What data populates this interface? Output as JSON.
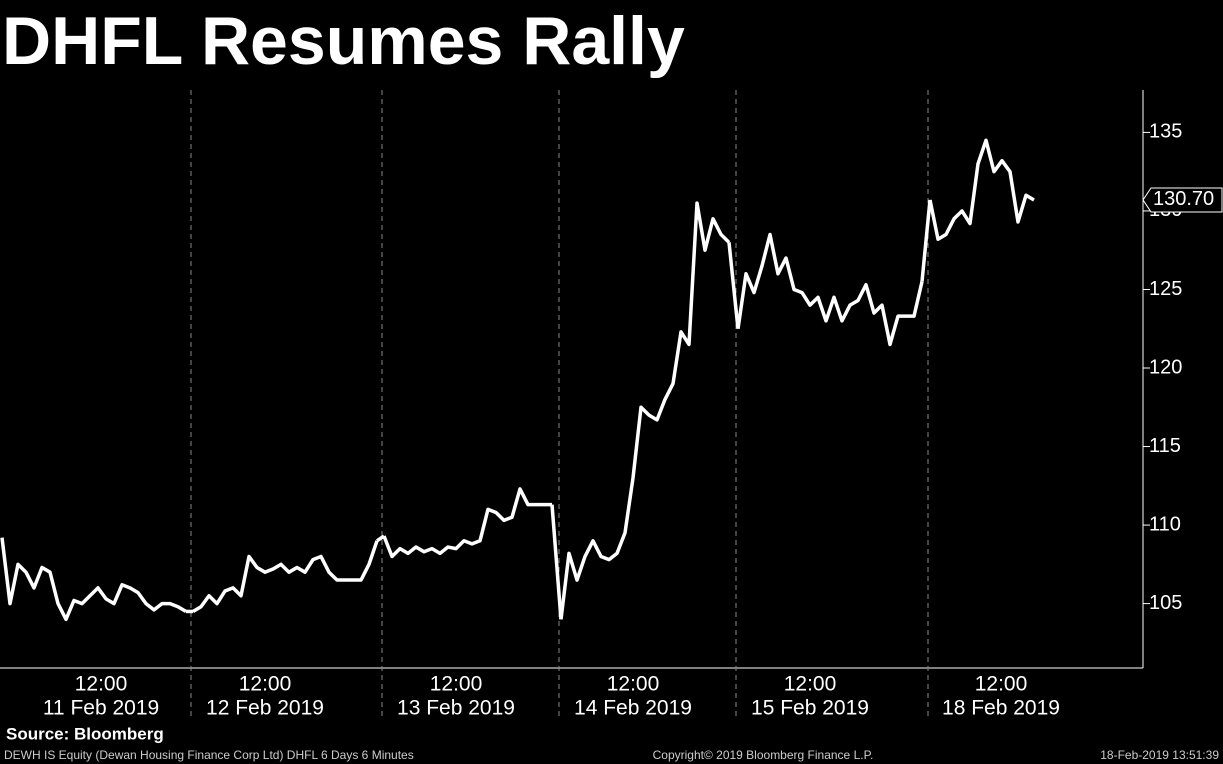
{
  "chart_data": {
    "type": "line",
    "title": "DHFL Resumes Rally",
    "source": "Source: Bloomberg",
    "footer_left": "DEWH IS Equity (Dewan Housing Finance Corp Ltd) DHFL 6 Days 6 Minutes",
    "footer_center": "Copyright© 2019 Bloomberg Finance L.P.",
    "footer_right": "18-Feb-2019 13:51:39",
    "color": "#ffffff",
    "ylim": [
      100.9,
      137.7
    ],
    "yticks": [
      105,
      110,
      115,
      120,
      125,
      130,
      135
    ],
    "last_price": {
      "value": 130.7,
      "label": "130.70"
    },
    "days": [
      {
        "date": "11 Feb 2019",
        "time_label": "12:00",
        "values": [
          109.2,
          105,
          107.5,
          107,
          106,
          107.3,
          107,
          105,
          104,
          105.2,
          105,
          105.5,
          106,
          105.3,
          105,
          106.2,
          106,
          105.7,
          105,
          104.6,
          105,
          105,
          104.8,
          104.5
        ]
      },
      {
        "date": "12 Feb 2019",
        "time_label": "12:00",
        "values": [
          104.5,
          104.8,
          105.5,
          105,
          105.8,
          106,
          105.5,
          108,
          107.3,
          107,
          107.2,
          107.5,
          107,
          107.3,
          107,
          107.8,
          108,
          107,
          106.5,
          106.5,
          106.5,
          106.5,
          107.5,
          109
        ]
      },
      {
        "date": "13 Feb 2019",
        "time_label": "12:00",
        "values": [
          109.3,
          108,
          108.5,
          108.2,
          108.6,
          108.3,
          108.5,
          108.2,
          108.6,
          108.5,
          109,
          108.8,
          109,
          111,
          110.8,
          110.3,
          110.5,
          112.3,
          111.3,
          111.3,
          111.3,
          111.3
        ]
      },
      {
        "date": "14 Feb 2019",
        "time_label": "12:00",
        "values": [
          104,
          108.2,
          106.5,
          108,
          109,
          108,
          107.8,
          108.2,
          109.5,
          113,
          117.5,
          117,
          116.7,
          118,
          119,
          122.3,
          121.5,
          130.5,
          127.5,
          129.5,
          128.5,
          128
        ]
      },
      {
        "date": "15 Feb 2019",
        "time_label": "12:00",
        "values": [
          122.5,
          126,
          124.8,
          126.5,
          128.5,
          126,
          127,
          125,
          124.8,
          124,
          124.5,
          123,
          124.5,
          123,
          124,
          124.3,
          125.3,
          123.5,
          124,
          121.5,
          123.3,
          123.3,
          123.3,
          125.5
        ]
      },
      {
        "date": "18 Feb 2019",
        "time_label": "12:00",
        "values": [
          130.7,
          128.2,
          128.5,
          129.5,
          130,
          129.2,
          133,
          134.5,
          132.5,
          133.2,
          132.5,
          129.3,
          131,
          130.7
        ]
      }
    ]
  }
}
